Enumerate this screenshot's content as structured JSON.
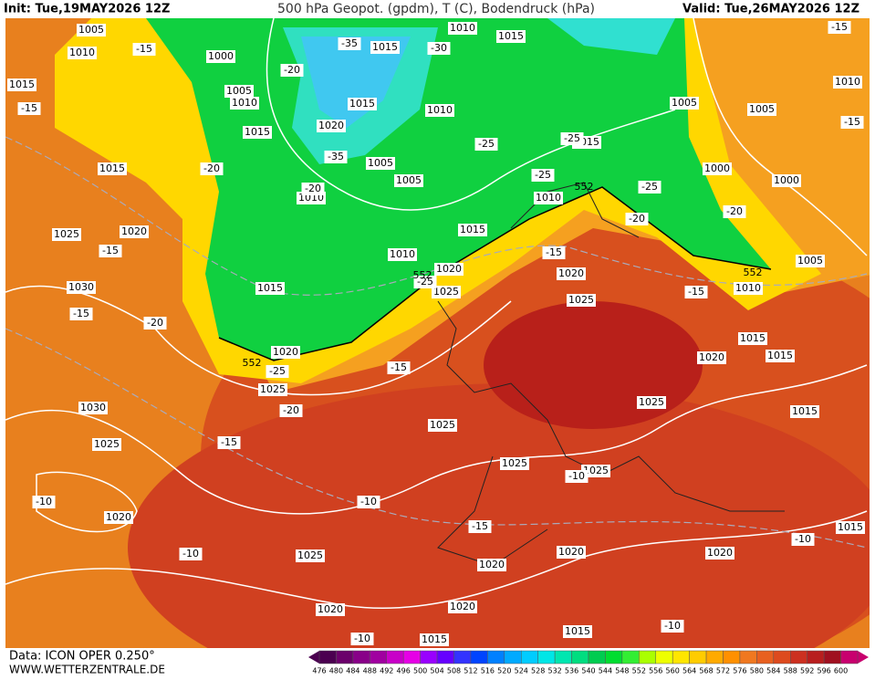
{
  "header": {
    "init": "Init: Tue,19MAY2026 12Z",
    "title": "500 hPa Geopot. (gpdm), T (C), Bodendruck (hPa)",
    "valid": "Valid: Tue,26MAY2026 12Z"
  },
  "map": {
    "pressure_labels": [
      "1005",
      "1010",
      "1015",
      "1015",
      "1025",
      "1020",
      "1030",
      "1030",
      "1025",
      "1020",
      "1025",
      "1020",
      "1015",
      "1020",
      "1020",
      "1020",
      "1015",
      "1025",
      "1025",
      "1025",
      "1025",
      "1025",
      "1020",
      "1020",
      "1025",
      "1020",
      "1025",
      "1015",
      "1010",
      "1015",
      "1010",
      "1015",
      "1005",
      "1005",
      "1000",
      "1000",
      "1005",
      "1010",
      "1015",
      "1020",
      "1015",
      "1015",
      "1015",
      "1020",
      "1010",
      "1015",
      "1015",
      "1000",
      "1005",
      "1010",
      "1015",
      "1015",
      "1010",
      "1020",
      "1005",
      "1005",
      "1010",
      "1010"
    ],
    "temperature_labels": [
      "-15",
      "-15",
      "-35",
      "-30",
      "-20",
      "-15",
      "-15",
      "-25",
      "-25",
      "-35",
      "-20",
      "-20",
      "-25",
      "-25",
      "-20",
      "-20",
      "-15",
      "-15",
      "-25",
      "-15",
      "-20",
      "-15",
      "-25",
      "-15",
      "-20",
      "-15",
      "-10",
      "-10",
      "-10",
      "-15",
      "-10",
      "-10",
      "-10",
      "-10"
    ],
    "contour_labels": [
      "552",
      "552",
      "552",
      "552"
    ]
  },
  "legend": {
    "values": [
      476,
      480,
      484,
      488,
      492,
      496,
      500,
      504,
      508,
      512,
      516,
      520,
      524,
      528,
      532,
      536,
      540,
      544,
      548,
      552,
      556,
      560,
      564,
      568,
      572,
      576,
      580,
      584,
      588,
      592,
      596,
      600
    ],
    "colors": [
      "#4b0050",
      "#6b006b",
      "#880088",
      "#a000a0",
      "#c800c8",
      "#e600e6",
      "#9900ff",
      "#6600ff",
      "#3333ff",
      "#0044ff",
      "#0080ff",
      "#00aaff",
      "#00ccff",
      "#00e6e6",
      "#00e6b0",
      "#00dd80",
      "#00cc50",
      "#00dd30",
      "#33ee33",
      "#aaff00",
      "#eeff00",
      "#ffe600",
      "#ffcc00",
      "#ffaa00",
      "#ff9000",
      "#f07820",
      "#e86020",
      "#dd4a1e",
      "#cc3020",
      "#b81e1e",
      "#a01020",
      "#c8006e"
    ]
  },
  "footer": {
    "data": "Data: ICON OPER 0.250°",
    "site": "WWW.WETTERZENTRALE.DE"
  }
}
